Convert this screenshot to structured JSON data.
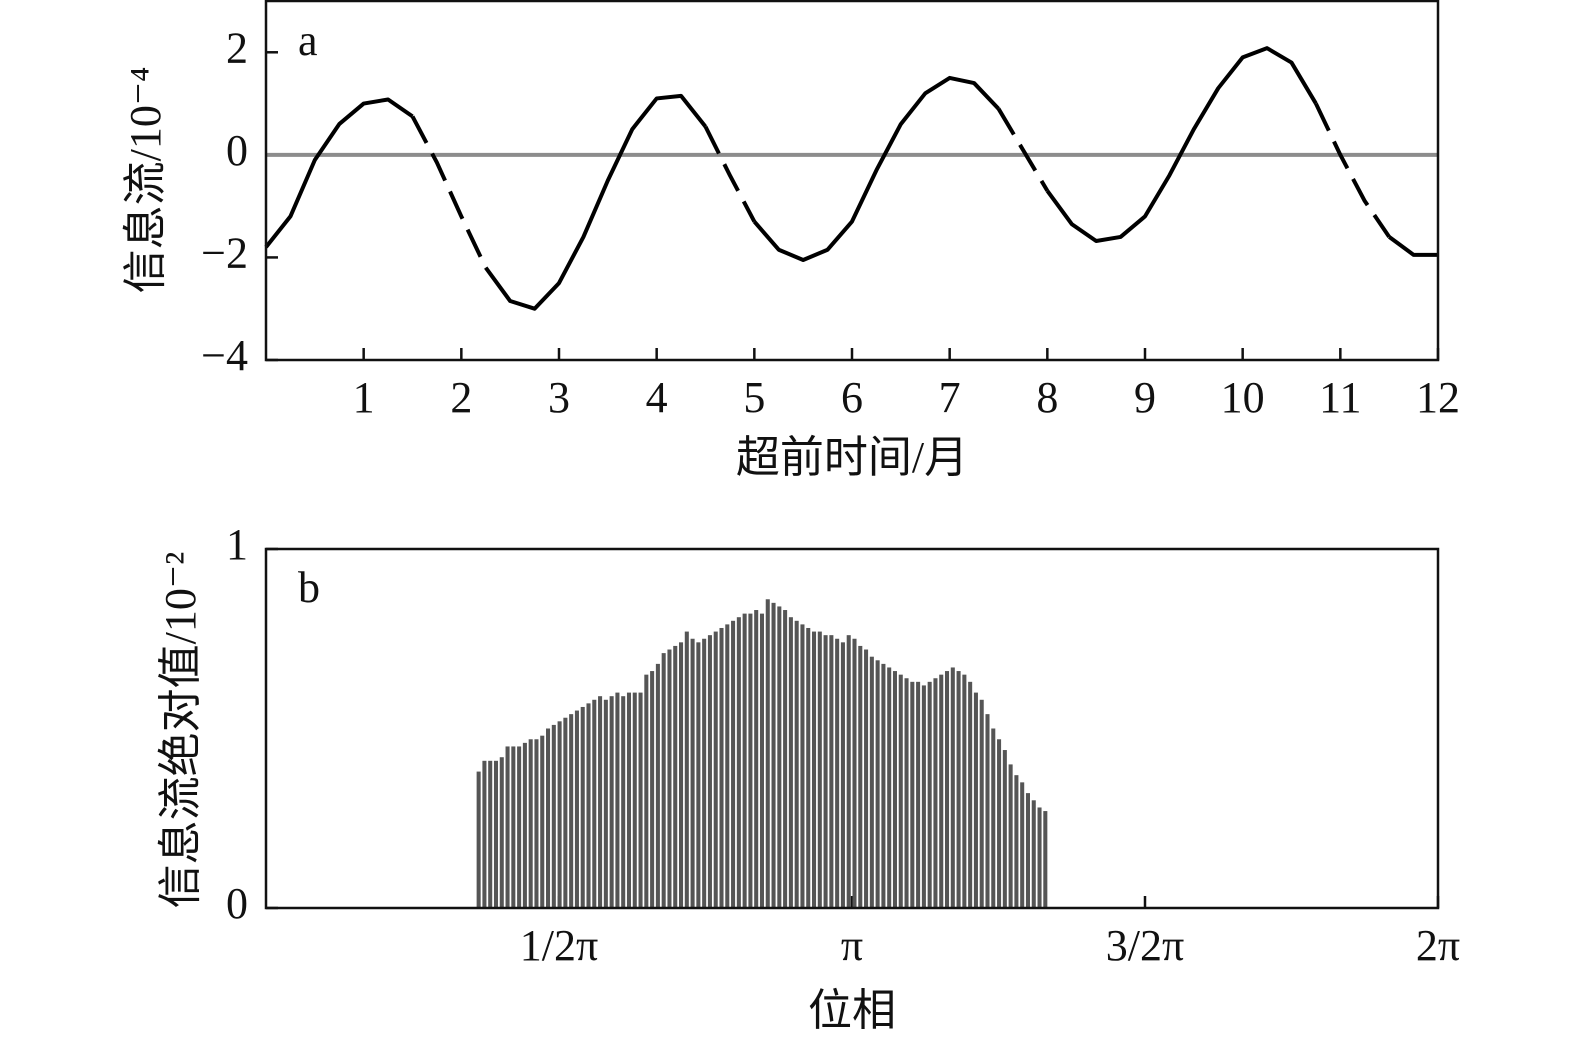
{
  "chart_data": [
    {
      "type": "line",
      "annotation": "a",
      "x_label": "超前时间/月",
      "y_label": "信息流/10⁻⁴",
      "xlim": [
        0,
        12
      ],
      "xticks": [
        1,
        2,
        3,
        4,
        5,
        6,
        7,
        8,
        9,
        10,
        11,
        12
      ],
      "ylim": [
        -4,
        3
      ],
      "yticks": [
        {
          "value": -4,
          "label": "−4"
        },
        {
          "value": -2,
          "label": "−2"
        },
        0,
        2
      ],
      "hline": 0,
      "hline_color": "#8c8c8c",
      "x": [
        0,
        0.25,
        0.5,
        0.75,
        1,
        1.25,
        1.5,
        1.75,
        2,
        2.25,
        2.5,
        2.75,
        3,
        3.25,
        3.5,
        3.75,
        4,
        4.25,
        4.5,
        4.75,
        5,
        5.25,
        5.5,
        5.75,
        6,
        6.25,
        6.5,
        6.75,
        7,
        7.25,
        7.5,
        7.75,
        8,
        8.25,
        8.5,
        8.75,
        9,
        9.25,
        9.5,
        9.75,
        10,
        10.25,
        10.5,
        10.75,
        11,
        11.25,
        11.5,
        11.75,
        12
      ],
      "series": [
        {
          "color": "#000000",
          "dash": false,
          "values": [
            -1.8,
            -1.2,
            -0.1,
            0.6,
            1.0,
            1.08,
            0.75,
            null,
            null,
            -2.2,
            -2.85,
            -3.0,
            -2.5,
            -1.6,
            -0.5,
            0.5,
            1.1,
            1.15,
            0.55,
            null,
            -1.3,
            -1.85,
            -2.05,
            -1.85,
            -1.3,
            -0.3,
            0.6,
            1.2,
            1.5,
            1.4,
            0.9,
            null,
            -0.7,
            -1.35,
            -1.68,
            -1.6,
            -1.2,
            -0.4,
            0.5,
            1.3,
            1.9,
            2.08,
            1.8,
            1.0,
            null,
            null,
            -1.6,
            -1.95,
            -1.95
          ]
        },
        {
          "color": "#000000",
          "dash": true,
          "values": [
            null,
            null,
            null,
            null,
            null,
            null,
            0.75,
            -0.15,
            -1.2,
            -2.2,
            null,
            null,
            null,
            null,
            null,
            null,
            null,
            null,
            0.55,
            -0.4,
            -1.3,
            null,
            null,
            null,
            null,
            null,
            null,
            null,
            null,
            null,
            0.9,
            0.1,
            -0.7,
            null,
            null,
            null,
            null,
            null,
            null,
            null,
            null,
            null,
            null,
            1.0,
            0.0,
            -0.9,
            -1.6,
            null,
            null
          ]
        }
      ]
    },
    {
      "type": "bar",
      "annotation": "b",
      "x_label": "位相",
      "y_label": "信息流绝对值/10⁻²",
      "color": "#555555",
      "xlim": [
        0,
        6.2832
      ],
      "xticks": [
        {
          "value": 1.5708,
          "label": "1/2π"
        },
        {
          "value": 3.1416,
          "label": "π"
        },
        {
          "value": 4.7124,
          "label": "3/2π"
        },
        {
          "value": 6.2832,
          "label": "2π"
        }
      ],
      "ylim": [
        0,
        1
      ],
      "yticks": [
        0,
        1
      ],
      "x": [
        1.14,
        1.171,
        1.202,
        1.233,
        1.264,
        1.295,
        1.326,
        1.357,
        1.388,
        1.419,
        1.45,
        1.481,
        1.512,
        1.543,
        1.574,
        1.605,
        1.636,
        1.667,
        1.698,
        1.729,
        1.76,
        1.791,
        1.822,
        1.853,
        1.884,
        1.915,
        1.946,
        1.977,
        2.008,
        2.039,
        2.07,
        2.101,
        2.132,
        2.163,
        2.194,
        2.225,
        2.256,
        2.287,
        2.318,
        2.349,
        2.38,
        2.411,
        2.442,
        2.473,
        2.504,
        2.535,
        2.566,
        2.597,
        2.628,
        2.659,
        2.69,
        2.721,
        2.752,
        2.783,
        2.814,
        2.845,
        2.876,
        2.907,
        2.938,
        2.969,
        3.0,
        3.031,
        3.062,
        3.093,
        3.124,
        3.155,
        3.186,
        3.217,
        3.248,
        3.279,
        3.31,
        3.341,
        3.372,
        3.403,
        3.434,
        3.465,
        3.496,
        3.527,
        3.558,
        3.589,
        3.62,
        3.651,
        3.682,
        3.713,
        3.744,
        3.775,
        3.806,
        3.837,
        3.868,
        3.899,
        3.93,
        3.961,
        3.992,
        4.023,
        4.054,
        4.085,
        4.116,
        4.147,
        4.178
      ],
      "values": [
        0.38,
        0.41,
        0.41,
        0.41,
        0.42,
        0.45,
        0.45,
        0.45,
        0.46,
        0.47,
        0.47,
        0.48,
        0.5,
        0.51,
        0.52,
        0.53,
        0.54,
        0.55,
        0.56,
        0.57,
        0.58,
        0.59,
        0.58,
        0.59,
        0.6,
        0.59,
        0.6,
        0.6,
        0.6,
        0.65,
        0.66,
        0.68,
        0.71,
        0.72,
        0.73,
        0.74,
        0.77,
        0.75,
        0.74,
        0.75,
        0.76,
        0.77,
        0.78,
        0.79,
        0.8,
        0.81,
        0.82,
        0.82,
        0.83,
        0.82,
        0.86,
        0.85,
        0.84,
        0.83,
        0.81,
        0.8,
        0.79,
        0.78,
        0.77,
        0.77,
        0.76,
        0.76,
        0.75,
        0.74,
        0.76,
        0.75,
        0.73,
        0.72,
        0.7,
        0.69,
        0.68,
        0.67,
        0.66,
        0.65,
        0.64,
        0.63,
        0.63,
        0.62,
        0.63,
        0.64,
        0.65,
        0.66,
        0.67,
        0.66,
        0.65,
        0.63,
        0.6,
        0.58,
        0.54,
        0.5,
        0.47,
        0.44,
        0.4,
        0.37,
        0.35,
        0.32,
        0.3,
        0.28,
        0.27
      ]
    }
  ]
}
